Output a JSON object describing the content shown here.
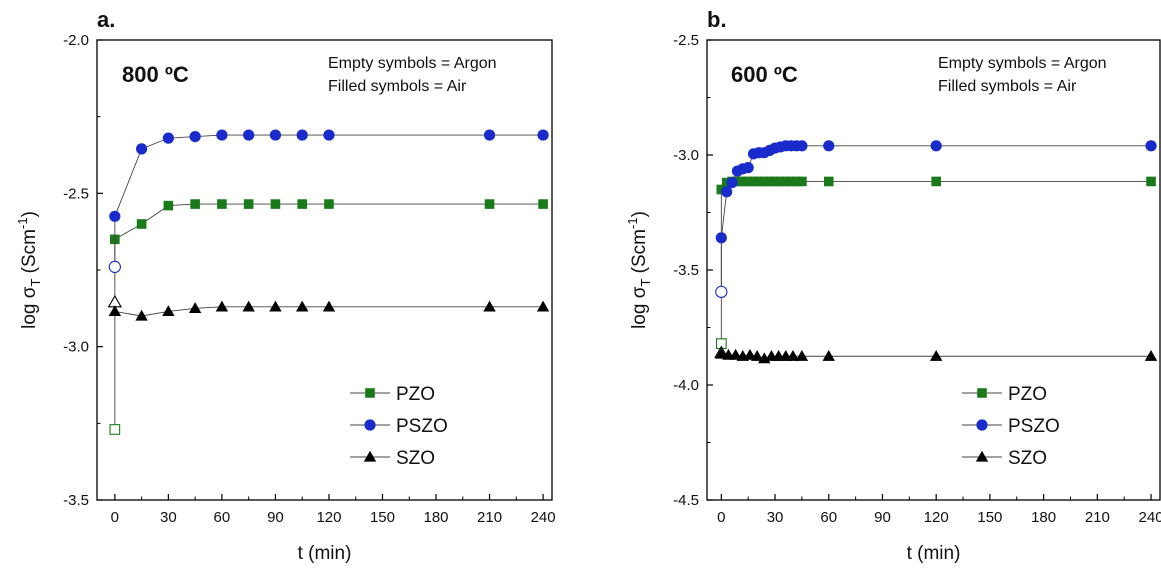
{
  "chart_data": [
    {
      "type": "line",
      "panel_label": "a.",
      "temperature_label": "800 ºC",
      "notes": [
        "Empty symbols = Argon",
        "Filled symbols = Air"
      ],
      "xlabel": "t (min)",
      "ylabel_main": "log σ",
      "ylabel_sub": "T",
      "ylabel_unit": " (Scm",
      "ylabel_sup": "-1",
      "ylabel_close": ")",
      "xlim": [
        -10,
        245
      ],
      "ylim": [
        -3.5,
        -2.0
      ],
      "xticks": [
        0,
        30,
        60,
        90,
        120,
        150,
        180,
        210,
        240
      ],
      "yticks": [
        -3.5,
        -3.0,
        -2.5,
        -2.0
      ],
      "ytick_labels": [
        "-3.5",
        "-3.0",
        "-2.5",
        "-2.0"
      ],
      "legend_position": "bottom-right",
      "series": [
        {
          "name": "PZO",
          "marker": "square",
          "color": "#1a7a1a",
          "argon_point": {
            "x": 0,
            "y": -3.27
          },
          "x": [
            0,
            15,
            30,
            45,
            60,
            75,
            90,
            105,
            120,
            210,
            240
          ],
          "y": [
            -2.65,
            -2.6,
            -2.54,
            -2.535,
            -2.535,
            -2.535,
            -2.535,
            -2.535,
            -2.535,
            -2.535,
            -2.535
          ]
        },
        {
          "name": "PSZO",
          "marker": "circle",
          "color": "#1a2bcc",
          "argon_point": {
            "x": 0,
            "y": -2.74
          },
          "x": [
            0,
            15,
            30,
            45,
            60,
            75,
            90,
            105,
            120,
            210,
            240
          ],
          "y": [
            -2.575,
            -2.355,
            -2.32,
            -2.315,
            -2.31,
            -2.31,
            -2.31,
            -2.31,
            -2.31,
            -2.31,
            -2.31
          ]
        },
        {
          "name": "SZO",
          "marker": "triangle",
          "color": "#000000",
          "argon_point": {
            "x": 0,
            "y": -2.855
          },
          "x": [
            0,
            15,
            30,
            45,
            60,
            75,
            90,
            105,
            120,
            210,
            240
          ],
          "y": [
            -2.885,
            -2.9,
            -2.885,
            -2.875,
            -2.87,
            -2.87,
            -2.87,
            -2.87,
            -2.87,
            -2.87,
            -2.87
          ]
        }
      ]
    },
    {
      "type": "line",
      "panel_label": "b.",
      "temperature_label": "600 ºC",
      "notes": [
        "Empty symbols = Argon",
        "Filled symbols = Air"
      ],
      "xlabel": "t (min)",
      "ylabel_main": "log σ",
      "ylabel_sub": "T",
      "ylabel_unit": " (Scm",
      "ylabel_sup": "-1",
      "ylabel_close": ")",
      "xlim": [
        -8,
        245
      ],
      "ylim": [
        -4.5,
        -2.5
      ],
      "xticks": [
        0,
        30,
        60,
        90,
        120,
        150,
        180,
        210,
        240
      ],
      "yticks": [
        -4.5,
        -4.0,
        -3.5,
        -3.0,
        -2.5
      ],
      "ytick_labels": [
        "-4.5",
        "-4.0",
        "-3.5",
        "-3.0",
        "-2.5"
      ],
      "legend_position": "bottom-right",
      "series": [
        {
          "name": "PZO",
          "marker": "square",
          "color": "#1a7a1a",
          "argon_point": {
            "x": 0,
            "y": -3.82
          },
          "x": [
            0,
            3,
            6,
            9,
            12,
            15,
            18,
            21,
            24,
            27,
            30,
            33,
            36,
            39,
            42,
            45,
            60,
            120,
            240
          ],
          "y": [
            -3.15,
            -3.12,
            -3.115,
            -3.115,
            -3.115,
            -3.115,
            -3.115,
            -3.115,
            -3.115,
            -3.115,
            -3.115,
            -3.115,
            -3.115,
            -3.115,
            -3.115,
            -3.115,
            -3.115,
            -3.115,
            -3.115
          ]
        },
        {
          "name": "PSZO",
          "marker": "circle",
          "color": "#1a2bcc",
          "argon_point": {
            "x": 0,
            "y": -3.595
          },
          "x": [
            0,
            3,
            6,
            9,
            12,
            15,
            18,
            21,
            24,
            27,
            30,
            33,
            36,
            39,
            42,
            45,
            60,
            120,
            240
          ],
          "y": [
            -3.36,
            -3.16,
            -3.12,
            -3.07,
            -3.06,
            -3.055,
            -2.995,
            -2.99,
            -2.99,
            -2.98,
            -2.97,
            -2.965,
            -2.96,
            -2.96,
            -2.96,
            -2.96,
            -2.96,
            -2.96,
            -2.96
          ]
        },
        {
          "name": "SZO",
          "marker": "triangle",
          "color": "#000000",
          "argon_point": {
            "x": 0,
            "y": -3.86
          },
          "x": [
            0,
            4,
            8,
            12,
            16,
            20,
            24,
            28,
            32,
            36,
            40,
            45,
            60,
            120,
            240
          ],
          "y": [
            -3.865,
            -3.87,
            -3.87,
            -3.875,
            -3.87,
            -3.875,
            -3.885,
            -3.875,
            -3.875,
            -3.875,
            -3.875,
            -3.875,
            -3.875,
            -3.875,
            -3.875
          ]
        }
      ]
    }
  ]
}
